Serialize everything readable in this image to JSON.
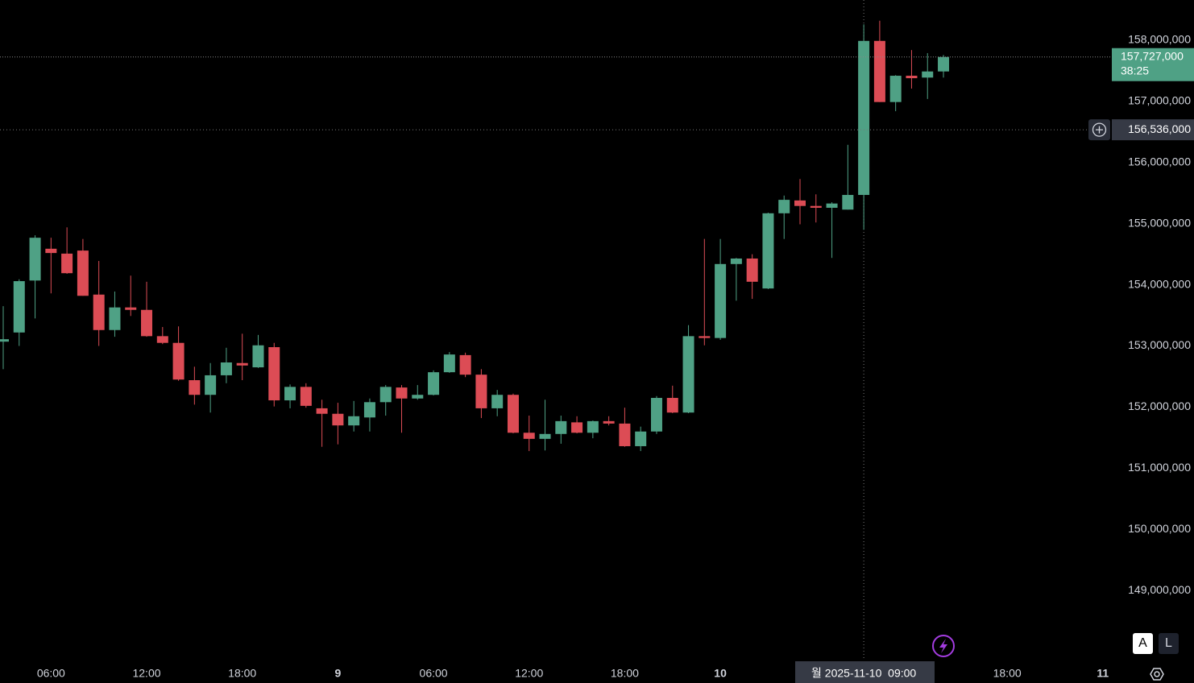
{
  "chart_data": {
    "type": "candlestick",
    "categories": [
      null,
      null,
      null,
      "06:00",
      null,
      null,
      null,
      null,
      null,
      "12:00",
      null,
      null,
      null,
      null,
      null,
      "18:00",
      null,
      null,
      null,
      null,
      null,
      "9",
      null,
      null,
      null,
      null,
      null,
      "06:00",
      null,
      null,
      null,
      null,
      null,
      "12:00",
      null,
      null,
      null,
      null,
      null,
      "18:00",
      null,
      null,
      null,
      null,
      null,
      "10",
      null,
      null,
      null,
      null,
      null,
      null,
      null,
      null,
      null,
      null,
      null,
      null,
      null,
      null,
      null,
      null,
      null,
      "18:00",
      null,
      null,
      null,
      null,
      null,
      "11"
    ],
    "open": [
      153070000,
      153220000,
      154070000,
      154590000,
      154510000,
      154560000,
      153840000,
      153260000,
      153630000,
      153590000,
      153160000,
      153050000,
      152440000,
      152200000,
      152520000,
      152720000,
      152650000,
      152980000,
      152110000,
      152330000,
      151980000,
      151890000,
      151700000,
      151830000,
      152080000,
      152320000,
      152140000,
      152200000,
      152570000,
      152850000,
      152530000,
      151980000,
      152200000,
      151580000,
      151480000,
      151560000,
      151750000,
      151580000,
      151770000,
      151730000,
      151360000,
      151600000,
      152150000,
      151910000,
      153160000,
      153130000,
      154340000,
      154430000,
      153940000,
      155170000,
      155380000,
      155290000,
      155260000,
      155230000,
      155470000,
      157990000,
      156990000,
      157420000,
      157390000,
      157490000,
      null,
      null,
      null,
      null,
      null,
      null,
      null,
      null,
      null,
      null
    ],
    "high": [
      153650000,
      154090000,
      154810000,
      154770000,
      154940000,
      154750000,
      154390000,
      153890000,
      154150000,
      154050000,
      153310000,
      153320000,
      152660000,
      152720000,
      152970000,
      153200000,
      153180000,
      153050000,
      152370000,
      152390000,
      152120000,
      152070000,
      152100000,
      152140000,
      152360000,
      152360000,
      152360000,
      152600000,
      152900000,
      152890000,
      152620000,
      152280000,
      152220000,
      151860000,
      152120000,
      151860000,
      151850000,
      151780000,
      151850000,
      151990000,
      151680000,
      152180000,
      152350000,
      153340000,
      154750000,
      154750000,
      154440000,
      154500000,
      155180000,
      155460000,
      155730000,
      155480000,
      155350000,
      156290000,
      158260000,
      158320000,
      157430000,
      157840000,
      157790000,
      157760000,
      null,
      null,
      null,
      null,
      null,
      null,
      null,
      null,
      null,
      null
    ],
    "low": [
      152620000,
      153000000,
      153450000,
      153860000,
      154180000,
      153820000,
      153000000,
      153150000,
      153490000,
      153150000,
      153030000,
      152430000,
      152040000,
      151910000,
      152390000,
      152440000,
      152640000,
      152010000,
      151980000,
      151990000,
      151350000,
      151390000,
      151600000,
      151600000,
      151860000,
      151580000,
      152120000,
      152190000,
      152560000,
      152490000,
      151820000,
      151850000,
      151570000,
      151280000,
      151290000,
      151400000,
      151570000,
      151490000,
      151700000,
      151350000,
      151280000,
      151560000,
      151900000,
      151900000,
      153010000,
      153100000,
      153740000,
      153770000,
      153930000,
      154750000,
      154990000,
      155020000,
      154440000,
      155230000,
      154900000,
      156990000,
      156840000,
      157210000,
      157040000,
      157390000,
      null,
      null,
      null,
      null,
      null,
      null,
      null,
      null,
      null,
      null
    ],
    "close": [
      153110000,
      154060000,
      154770000,
      154520000,
      154190000,
      153820000,
      153260000,
      153630000,
      153590000,
      153160000,
      153050000,
      152450000,
      152200000,
      152520000,
      152730000,
      152680000,
      153010000,
      152110000,
      152330000,
      152020000,
      151890000,
      151700000,
      151850000,
      152080000,
      152330000,
      152140000,
      152200000,
      152570000,
      152860000,
      152530000,
      151980000,
      152200000,
      151580000,
      151480000,
      151560000,
      151770000,
      151580000,
      151770000,
      151730000,
      151360000,
      151600000,
      152150000,
      151910000,
      153160000,
      153130000,
      154340000,
      154430000,
      154050000,
      155170000,
      155390000,
      155290000,
      155260000,
      155330000,
      155470000,
      157990000,
      156990000,
      157420000,
      157380000,
      157490000,
      157727000,
      null,
      null,
      null,
      null,
      null,
      null,
      null,
      null,
      null,
      null
    ],
    "up_color": "#4fa185",
    "down_color": "#dc4c55",
    "ylim": [
      147855000,
      158659000
    ],
    "yticks": [
      {
        "value": 149000000,
        "label": "149,000,000"
      },
      {
        "value": 150000000,
        "label": "150,000,000"
      },
      {
        "value": 151000000,
        "label": "151,000,000"
      },
      {
        "value": 152000000,
        "label": "152,000,000"
      },
      {
        "value": 153000000,
        "label": "153,000,000"
      },
      {
        "value": 154000000,
        "label": "154,000,000"
      },
      {
        "value": 155000000,
        "label": "155,000,000"
      },
      {
        "value": 156000000,
        "label": "156,000,000"
      },
      {
        "value": 157000000,
        "label": "157,000,000"
      },
      {
        "value": 158000000,
        "label": "158,000,000"
      }
    ],
    "last_price": {
      "value": 157727000,
      "label": "157,727,000",
      "countdown": "38:25"
    },
    "crosshair": {
      "price": 156536000,
      "price_label": "156,536,000",
      "time_label": "월 2025-11-10  09:00"
    }
  },
  "buttons": {
    "auto": "A",
    "log": "L"
  }
}
